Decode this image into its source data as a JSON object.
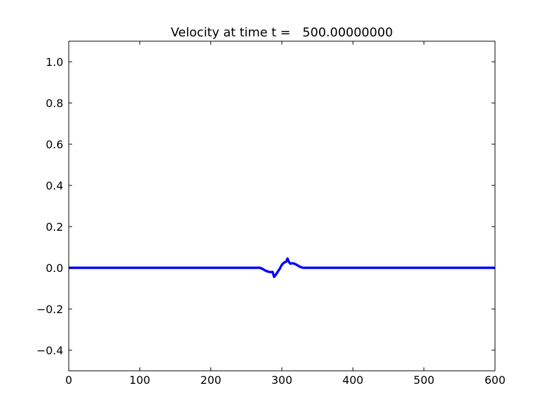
{
  "chart_data": {
    "type": "line",
    "title": "Velocity at time t =   500.00000000",
    "xlabel": "",
    "ylabel": "",
    "xlim": [
      0,
      600
    ],
    "ylim": [
      -0.5,
      1.1
    ],
    "xticks": [
      0,
      100,
      200,
      300,
      400,
      500,
      600
    ],
    "yticks": [
      -0.4,
      -0.2,
      0.0,
      0.2,
      0.4,
      0.6,
      0.8,
      1.0
    ],
    "xtick_labels": [
      "0",
      "100",
      "200",
      "300",
      "400",
      "500",
      "600"
    ],
    "ytick_labels": [
      "−0.4",
      "−0.2",
      "0.0",
      "0.2",
      "0.4",
      "0.6",
      "0.8",
      "1.0"
    ],
    "grid": false,
    "legend": "none",
    "series": [
      {
        "color": "#0000ff",
        "x": [
          0,
          100,
          200,
          260,
          265,
          268,
          272,
          276,
          280,
          284,
          287,
          289,
          291,
          294,
          297,
          300,
          303,
          306,
          308,
          310,
          312,
          314,
          317,
          320,
          323,
          326,
          330,
          334,
          337,
          340,
          400,
          500,
          600
        ],
        "y": [
          0,
          0,
          0,
          0,
          0,
          0.001,
          -0.004,
          -0.012,
          -0.018,
          -0.021,
          -0.02,
          -0.044,
          -0.036,
          -0.02,
          -0.005,
          0.015,
          0.025,
          0.03,
          0.045,
          0.028,
          0.02,
          0.022,
          0.021,
          0.016,
          0.01,
          0.004,
          0.0,
          0.0,
          0,
          0,
          0,
          0,
          0
        ]
      }
    ]
  }
}
